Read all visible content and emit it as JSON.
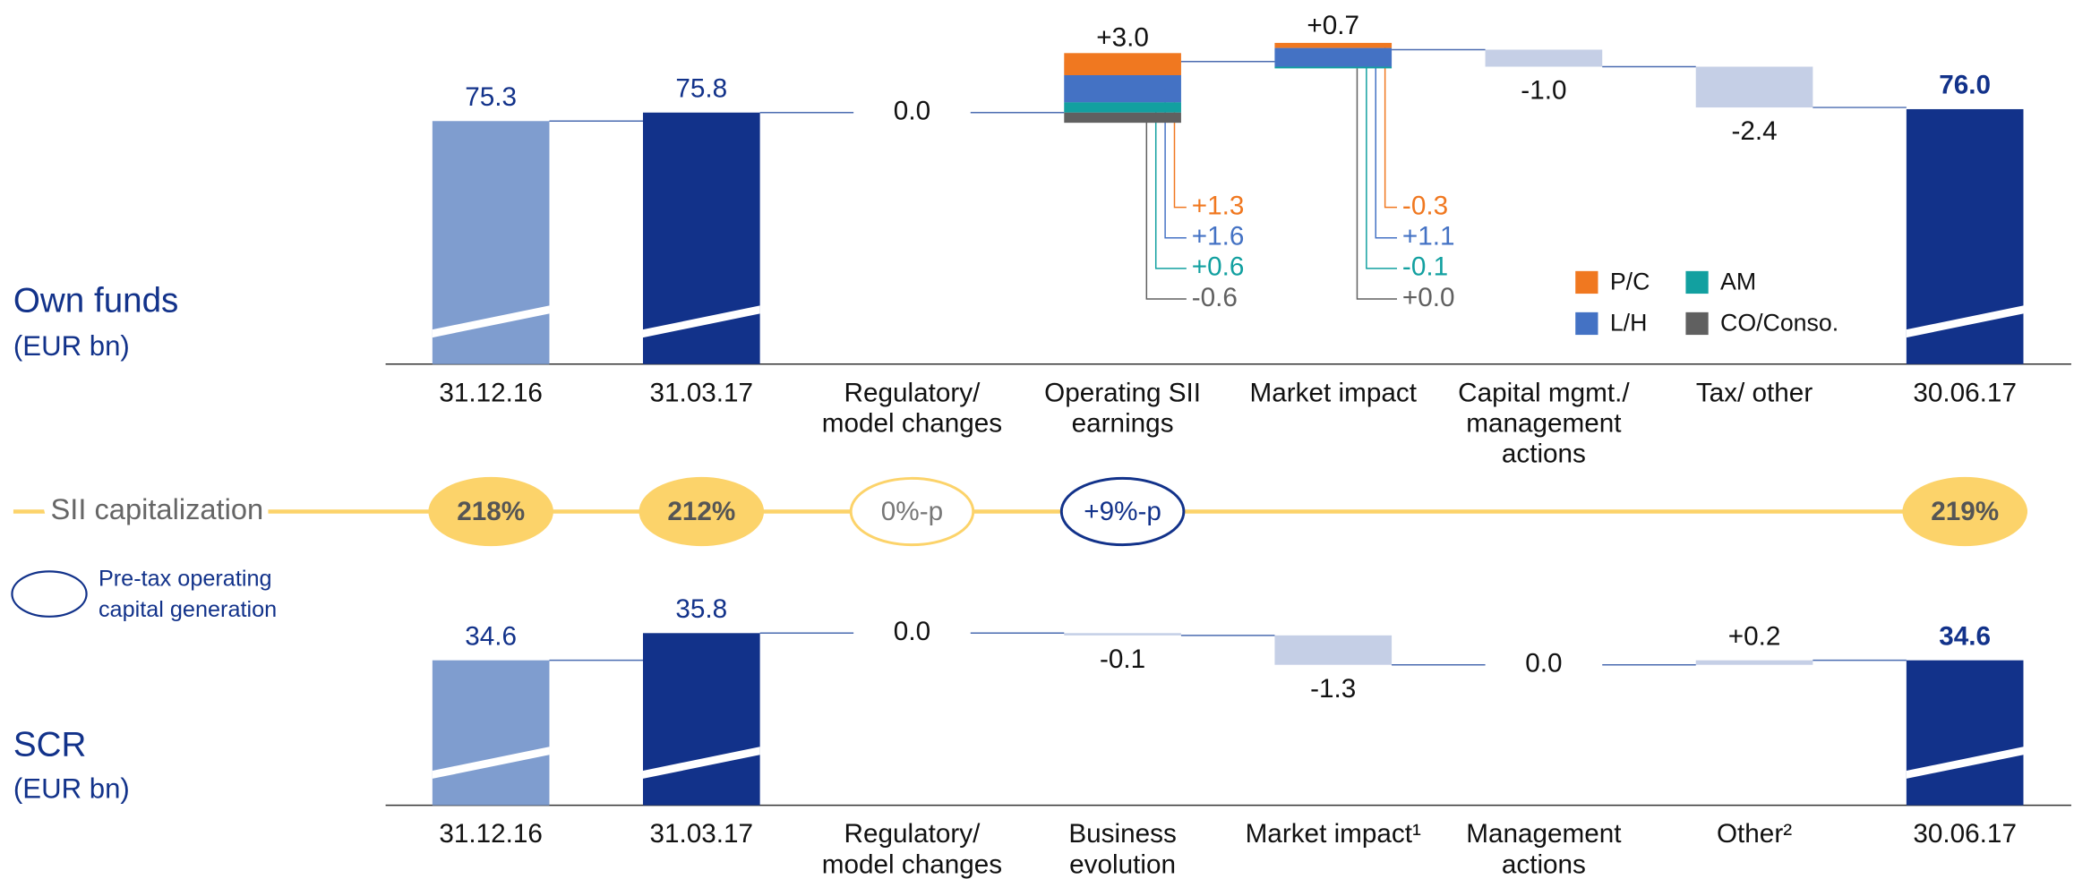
{
  "chart_data": [
    {
      "type": "waterfall",
      "title": "Own funds",
      "subtitle": "(EUR bn)",
      "categories": [
        "31.12.16",
        "31.03.17",
        "Regulatory/ model changes",
        "Operating SII earnings",
        "Market impact",
        "Capital mgmt./ management actions",
        "Tax/ other",
        "30.06.17"
      ],
      "measure": [
        "absolute",
        "absolute",
        "relative",
        "relative",
        "relative",
        "relative",
        "relative",
        "absolute"
      ],
      "values": [
        75.3,
        75.8,
        0.0,
        3.0,
        0.7,
        -1.0,
        -2.4,
        76.0
      ],
      "value_labels": [
        "75.3",
        "75.8",
        "0.0",
        "+3.0",
        "+0.7",
        "-1.0",
        "-2.4",
        "76.0"
      ],
      "colors": [
        "#7f9dcf",
        "#12328a",
        "#c5cfe6",
        "#c5cfe6",
        "#c5cfe6",
        "#c5cfe6",
        "#c5cfe6",
        "#12328a"
      ],
      "ylim": [
        61,
        80
      ],
      "breakdown": [
        {
          "name": "P/C",
          "color": "#f07820",
          "values": [
            null,
            null,
            null,
            1.3,
            -0.3,
            null,
            null,
            null
          ],
          "value_labels": [
            null,
            null,
            null,
            "+1.3",
            "-0.3",
            null,
            null,
            null
          ]
        },
        {
          "name": "L/H",
          "color": "#4472c4",
          "values": [
            null,
            null,
            null,
            1.6,
            1.1,
            null,
            null,
            null
          ],
          "value_labels": [
            null,
            null,
            null,
            "+1.6",
            "+1.1",
            null,
            null,
            null
          ]
        },
        {
          "name": "AM",
          "color": "#12a0a0",
          "values": [
            null,
            null,
            null,
            0.6,
            -0.1,
            null,
            null,
            null
          ],
          "value_labels": [
            null,
            null,
            null,
            "+0.6",
            "-0.1",
            null,
            null,
            null
          ]
        },
        {
          "name": "CO/Conso.",
          "color": "#606060",
          "values": [
            null,
            null,
            null,
            -0.6,
            0.0,
            null,
            null,
            null
          ],
          "value_labels": [
            null,
            null,
            null,
            "-0.6",
            "+0.0",
            null,
            null,
            null
          ]
        }
      ]
    },
    {
      "type": "waterfall",
      "title": "SCR",
      "subtitle": "(EUR bn)",
      "categories": [
        "31.12.16",
        "31.03.17",
        "Regulatory/ model changes",
        "Business evolution",
        "Market impact¹",
        "Management actions",
        "Other²",
        "30.06.17"
      ],
      "measure": [
        "absolute",
        "absolute",
        "relative",
        "relative",
        "relative",
        "relative",
        "relative",
        "absolute"
      ],
      "values": [
        34.6,
        35.8,
        0.0,
        -0.1,
        -1.3,
        0.0,
        0.2,
        34.6
      ],
      "value_labels": [
        "34.6",
        "35.8",
        "0.0",
        "-0.1",
        "-1.3",
        "0.0",
        "+0.2",
        "34.6"
      ],
      "colors": [
        "#7f9dcf",
        "#12328a",
        "#c5cfe6",
        "#c5cfe6",
        "#c5cfe6",
        "#c5cfe6",
        "#c5cfe6",
        "#12328a"
      ],
      "ylim": [
        28.2,
        37
      ]
    }
  ],
  "capitalization": {
    "name": "SII capitalization",
    "color": "#fcd36a",
    "values": [
      218,
      212,
      0,
      9,
      null,
      null,
      null,
      219
    ],
    "value_labels": [
      "218%",
      "212%",
      "0%-p",
      "+9%-p",
      null,
      null,
      null,
      "219%"
    ]
  },
  "pretax_note": {
    "label": "Pre-tax operating capital generation",
    "index": 3,
    "color": "#12328a"
  }
}
